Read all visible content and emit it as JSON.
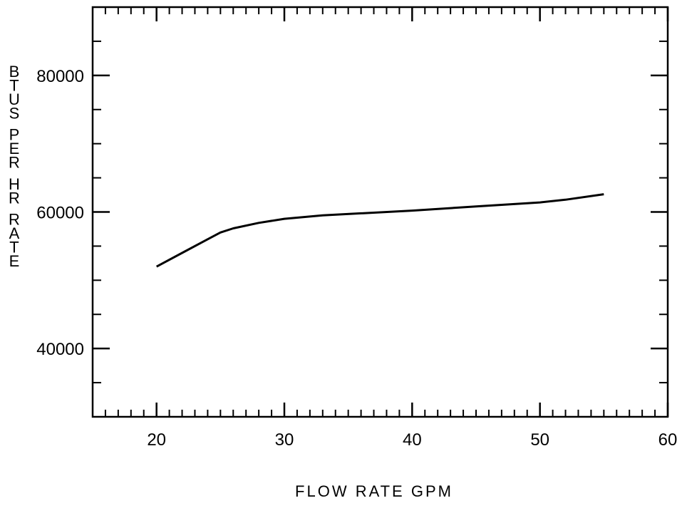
{
  "chart_data": {
    "type": "line",
    "title": "",
    "xlabel": "FLOW RATE GPM",
    "ylabel": "BTUS PER HR RATE",
    "xlim": [
      15,
      60
    ],
    "ylim": [
      30000,
      90000
    ],
    "x_ticks": [
      20,
      30,
      40,
      50,
      60
    ],
    "x_tick_labels": [
      "20",
      "30",
      "40",
      "50",
      "60"
    ],
    "x_minor_step": 1,
    "y_ticks": [
      40000,
      60000,
      80000
    ],
    "y_tick_labels": [
      "40000",
      "60000",
      "80000"
    ],
    "y_minor_step": 5000,
    "grid": false,
    "legend": "none",
    "line_color": "#000000",
    "series": [
      {
        "x": [
          20,
          22,
          24,
          25,
          26,
          28,
          30,
          33,
          36,
          40,
          45,
          50,
          52,
          55
        ],
        "values": [
          52000,
          54000,
          56000,
          57000,
          57600,
          58400,
          59000,
          59500,
          59800,
          60200,
          60800,
          61400,
          61800,
          62600
        ]
      }
    ]
  }
}
